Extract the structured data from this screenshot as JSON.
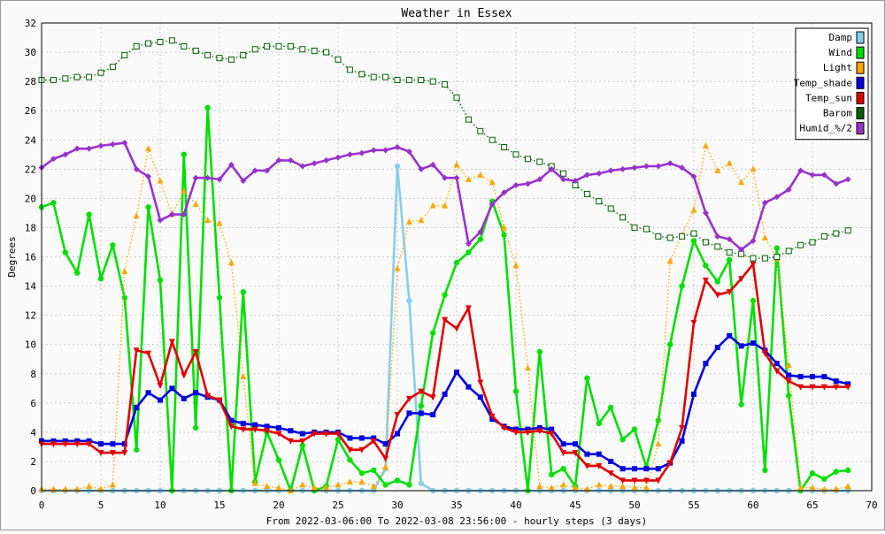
{
  "chart_data": {
    "type": "line",
    "title": "Weather in Essex",
    "xlabel": "From 2022-03-06:00 To 2022-03-08 23:56:00 - hourly steps (3 days)",
    "ylabel": "Degrees",
    "xlim": [
      0,
      70
    ],
    "ylim": [
      0,
      32
    ],
    "x_ticks": [
      0,
      5,
      10,
      15,
      20,
      25,
      30,
      35,
      40,
      45,
      50,
      55,
      60,
      65,
      70
    ],
    "y_ticks": [
      0,
      2,
      4,
      6,
      8,
      10,
      12,
      14,
      16,
      18,
      20,
      22,
      24,
      26,
      28,
      30,
      32
    ],
    "grid": true,
    "legend_position": "top-right",
    "series": [
      {
        "name": "Damp",
        "color": "#87ceeb",
        "style": "solid",
        "marker": "circle",
        "values": [
          0,
          0,
          0,
          0,
          0,
          0,
          0,
          0,
          0,
          0,
          0,
          0,
          0,
          0,
          0,
          0,
          0,
          0,
          0,
          0,
          0,
          0,
          0,
          0,
          0,
          0,
          0,
          0,
          0,
          1.5,
          22.2,
          13,
          0.5,
          0,
          0,
          0,
          0,
          0,
          0,
          0,
          0,
          0,
          0,
          0,
          0,
          0,
          0,
          0,
          0,
          0,
          0,
          0,
          0,
          0,
          0,
          0,
          0,
          0,
          0,
          0,
          0,
          0,
          0,
          0,
          0,
          0,
          0,
          0,
          0
        ]
      },
      {
        "name": "Wind",
        "color": "#00e000",
        "style": "solid",
        "marker": "circle",
        "values": [
          19.4,
          19.7,
          16.3,
          14.9,
          18.9,
          14.5,
          16.8,
          13.2,
          2.8,
          19.4,
          14.4,
          0,
          23,
          4.3,
          26.2,
          13.2,
          0,
          13.6,
          0.6,
          4,
          2.1,
          0,
          3.1,
          0,
          0.3,
          3.5,
          2.1,
          1.2,
          1.4,
          0.4,
          0.7,
          0.4,
          5.8,
          10.8,
          13.4,
          15.6,
          16.3,
          17.2,
          19.8,
          17.5,
          6.8,
          0,
          9.5,
          1.1,
          1.5,
          0.3,
          7.7,
          4.6,
          5.7,
          3.5,
          4.2,
          1.6,
          4.8,
          10,
          14,
          17.1,
          15.4,
          14.3,
          15.8,
          5.9,
          13,
          1.4,
          16.6,
          6.5,
          0,
          1.2,
          0.8,
          1.3,
          1.4
        ]
      },
      {
        "name": "Light",
        "color": "#ffa500",
        "style": "dotted",
        "marker": "triangle",
        "values": [
          0.1,
          0.1,
          0.1,
          0.1,
          0.3,
          0.1,
          0.4,
          15,
          18.8,
          23.4,
          21.2,
          18.9,
          20.5,
          19.6,
          18.5,
          18.3,
          15.6,
          7.8,
          0.5,
          0.3,
          0.2,
          0,
          0.4,
          0.2,
          0.2,
          0.4,
          0.6,
          0.6,
          0.3,
          1.6,
          15.2,
          18.4,
          18.5,
          19.5,
          19.5,
          22.3,
          21.3,
          21.6,
          21.1,
          18,
          15.4,
          8.4,
          0.3,
          0.2,
          0.4,
          0.2,
          0.1,
          0.4,
          0.3,
          0.3,
          0.2,
          0.2,
          3.2,
          15.7,
          17.5,
          19.2,
          23.6,
          21.9,
          22.4,
          21.1,
          22,
          17.3,
          15.9,
          8.6,
          0.2,
          0.2,
          0.1,
          0.1,
          0.3
        ]
      },
      {
        "name": "Temp_shade",
        "color": "#0000e0",
        "style": "solid",
        "marker": "square",
        "values": [
          3.4,
          3.4,
          3.4,
          3.4,
          3.4,
          3.2,
          3.2,
          3.2,
          5.7,
          6.7,
          6.2,
          7,
          6.3,
          6.7,
          6.4,
          6.2,
          4.8,
          4.6,
          4.5,
          4.4,
          4.3,
          4.1,
          3.9,
          4,
          4,
          4,
          3.6,
          3.6,
          3.6,
          3.2,
          3.9,
          5.3,
          5.3,
          5.2,
          6.6,
          8.1,
          7.1,
          6.4,
          4.9,
          4.4,
          4.2,
          4.2,
          4.3,
          4.2,
          3.2,
          3.2,
          2.5,
          2.5,
          2,
          1.5,
          1.5,
          1.5,
          1.5,
          1.9,
          3.4,
          6.6,
          8.7,
          9.8,
          10.6,
          9.9,
          10.1,
          9.6,
          8.7,
          7.9,
          7.8,
          7.8,
          7.8,
          7.5,
          7.3
        ]
      },
      {
        "name": "Temp_sun",
        "color": "#e00000",
        "style": "solid",
        "marker": "triangle-down",
        "values": [
          3.2,
          3.2,
          3.2,
          3.2,
          3.2,
          2.6,
          2.6,
          2.6,
          9.6,
          9.4,
          7.2,
          10.2,
          7.9,
          9.5,
          6.5,
          6.2,
          4.4,
          4.2,
          4.2,
          4.1,
          3.9,
          3.4,
          3.4,
          3.9,
          3.9,
          3.9,
          2.8,
          2.8,
          3.4,
          2.2,
          5.2,
          6.3,
          6.8,
          6.4,
          11.7,
          11.1,
          12.5,
          7.4,
          5.1,
          4.3,
          4,
          4,
          4.1,
          3.9,
          2.6,
          2.6,
          1.7,
          1.7,
          1.2,
          0.7,
          0.7,
          0.7,
          0.7,
          1.9,
          4.3,
          11.5,
          14.4,
          13.4,
          13.6,
          14.5,
          15.5,
          9.4,
          8.2,
          7.5,
          7.1,
          7.1,
          7.1,
          7.1,
          7.1
        ]
      },
      {
        "name": "Barom",
        "color": "#006000",
        "style": "dotted",
        "marker": "square",
        "values": [
          28.1,
          28.1,
          28.2,
          28.3,
          28.3,
          28.6,
          29,
          29.8,
          30.4,
          30.6,
          30.7,
          30.8,
          30.4,
          30.1,
          29.8,
          29.6,
          29.5,
          29.8,
          30.2,
          30.4,
          30.4,
          30.4,
          30.2,
          30.1,
          30,
          29.5,
          28.8,
          28.5,
          28.3,
          28.3,
          28.1,
          28.1,
          28.1,
          28,
          27.8,
          26.9,
          25.4,
          24.6,
          24,
          23.5,
          23,
          22.7,
          22.5,
          22.2,
          21.7,
          20.9,
          20.3,
          19.8,
          19.3,
          18.7,
          18,
          17.9,
          17.4,
          17.3,
          17.4,
          17.6,
          17,
          16.7,
          16.3,
          16.2,
          15.9,
          15.9,
          16,
          16.4,
          16.8,
          17,
          17.4,
          17.6,
          17.8
        ]
      },
      {
        "name": "Humid_%/2",
        "color": "#9932cc",
        "style": "solid",
        "marker": "diamond",
        "values": [
          22.1,
          22.7,
          23,
          23.4,
          23.4,
          23.6,
          23.7,
          23.8,
          22,
          21.5,
          18.5,
          18.9,
          18.9,
          21.4,
          21.4,
          21.3,
          22.3,
          21.2,
          21.9,
          21.9,
          22.6,
          22.6,
          22.2,
          22.4,
          22.6,
          22.8,
          23,
          23.1,
          23.3,
          23.3,
          23.5,
          23.2,
          22,
          22.3,
          21.4,
          21.4,
          16.9,
          17.7,
          19.6,
          20.4,
          20.9,
          21,
          21.3,
          22,
          21.3,
          21.2,
          21.6,
          21.7,
          21.9,
          22,
          22.1,
          22.2,
          22.2,
          22.4,
          22.1,
          21.5,
          19,
          17.4,
          17.2,
          16.5,
          17.1,
          19.7,
          20.1,
          20.6,
          21.9,
          21.6,
          21.6,
          21,
          21.3
        ]
      }
    ]
  }
}
